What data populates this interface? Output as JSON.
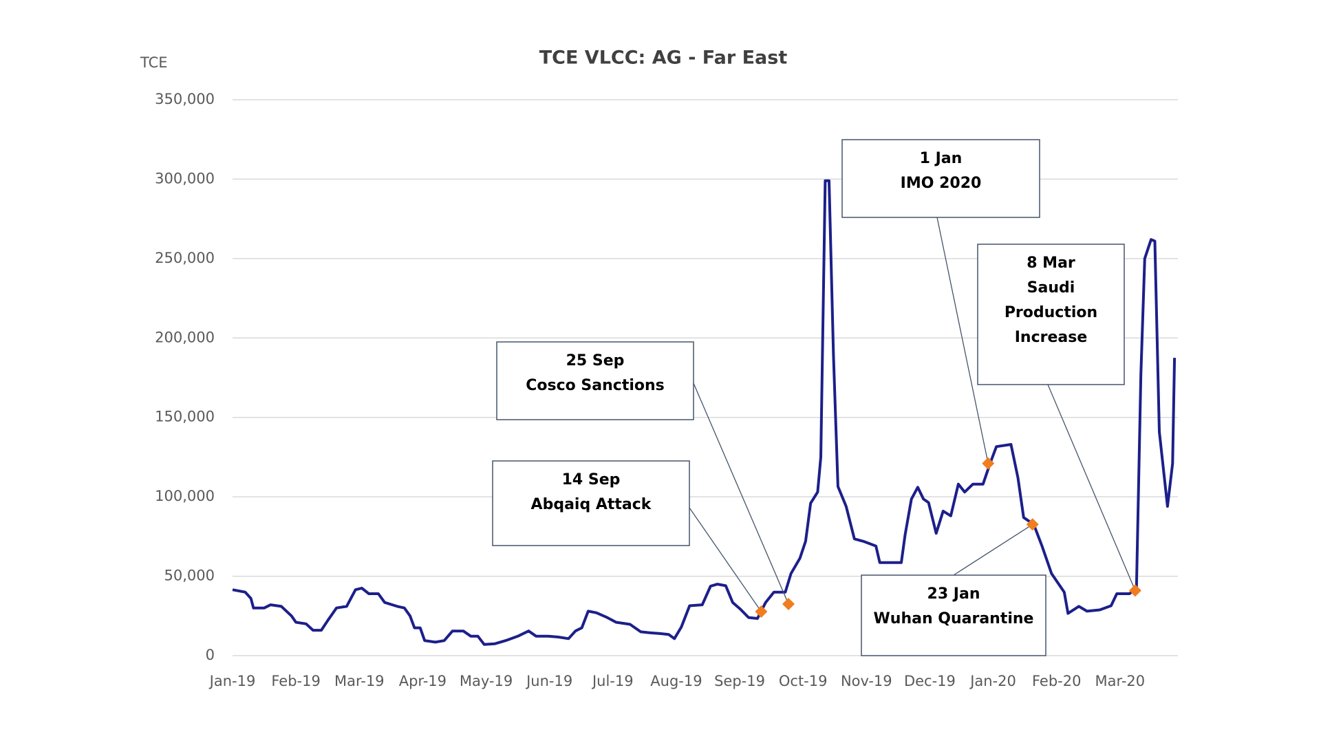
{
  "chart_data": {
    "type": "line",
    "title": "TCE VLCC: AG - Far East",
    "y_label": "TCE",
    "color": "#1c1f8a",
    "marker_color": "#f07d1e",
    "grid": true,
    "xlim": [
      0,
      14.87
    ],
    "xticks": [
      {
        "value": 0,
        "label": "Jan-19"
      },
      {
        "value": 1,
        "label": "Feb-19"
      },
      {
        "value": 2,
        "label": "Mar-19"
      },
      {
        "value": 3,
        "label": "Apr-19"
      },
      {
        "value": 4,
        "label": "May-19"
      },
      {
        "value": 5,
        "label": "Jun-19"
      },
      {
        "value": 6,
        "label": "Jul-19"
      },
      {
        "value": 7,
        "label": "Aug-19"
      },
      {
        "value": 8,
        "label": "Sep-19"
      },
      {
        "value": 9,
        "label": "Oct-19"
      },
      {
        "value": 10,
        "label": "Nov-19"
      },
      {
        "value": 11,
        "label": "Dec-19"
      },
      {
        "value": 12,
        "label": "Jan-20"
      },
      {
        "value": 13,
        "label": "Feb-20"
      },
      {
        "value": 14,
        "label": "Mar-20"
      }
    ],
    "ylim": [
      0,
      350000
    ],
    "yticks": [
      0,
      {
        "value": 50000,
        "label": "50,000"
      },
      {
        "value": 100000,
        "label": "100,000"
      },
      {
        "value": 150000,
        "label": "150,000"
      },
      {
        "value": 200000,
        "label": "200,000"
      },
      {
        "value": 250000,
        "label": "250,000"
      },
      {
        "value": 300000,
        "label": "300,000"
      },
      {
        "value": 350000,
        "label": "350,000"
      }
    ],
    "x": [
      0,
      0.2,
      0.29,
      0.33,
      0.5,
      0.6,
      0.77,
      0.93,
      1.0,
      1.16,
      1.27,
      1.4,
      1.5,
      1.64,
      1.8,
      1.94,
      2.04,
      2.15,
      2.3,
      2.4,
      2.6,
      2.71,
      2.8,
      2.87,
      2.96,
      3.03,
      3.2,
      3.34,
      3.47,
      3.64,
      3.76,
      3.87,
      3.97,
      4.14,
      4.31,
      4.5,
      4.67,
      4.79,
      4.98,
      5.14,
      5.3,
      5.41,
      5.51,
      5.61,
      5.74,
      5.91,
      6.05,
      6.27,
      6.44,
      6.58,
      6.74,
      6.88,
      6.97,
      7.08,
      7.21,
      7.41,
      7.54,
      7.65,
      7.78,
      7.89,
      8.01,
      8.14,
      8.28,
      8.41,
      8.54,
      8.72,
      8.81,
      8.95,
      9.04,
      9.12,
      9.23,
      9.28,
      9.35,
      9.41,
      9.48,
      9.55,
      9.68,
      9.81,
      9.95,
      10.15,
      10.21,
      10.55,
      10.61,
      10.71,
      10.81,
      10.9,
      10.98,
      11.1,
      11.21,
      11.33,
      11.45,
      11.55,
      11.68,
      11.84,
      11.95,
      12.05,
      12.28,
      12.39,
      12.48,
      12.64,
      12.77,
      12.92,
      13.12,
      13.18,
      13.35,
      13.48,
      13.68,
      13.86,
      13.95,
      14.15,
      14.26,
      14.33,
      14.39,
      14.49,
      14.55,
      14.62,
      14.75,
      14.83,
      14.86
    ],
    "values": [
      41500,
      40000,
      36000,
      30000,
      30000,
      32000,
      31000,
      25000,
      21000,
      20000,
      16000,
      16000,
      22000,
      30000,
      31000,
      41500,
      42500,
      39000,
      39000,
      33500,
      31000,
      30000,
      25000,
      17500,
      17500,
      9500,
      8500,
      9500,
      15500,
      15500,
      12200,
      12200,
      7000,
      7500,
      9500,
      12200,
      15500,
      12200,
      12200,
      11700,
      10700,
      15500,
      17500,
      28000,
      27000,
      24000,
      21000,
      19700,
      15000,
      14400,
      13900,
      13300,
      10700,
      18000,
      31400,
      32000,
      43700,
      45000,
      44000,
      33500,
      29300,
      24000,
      23400,
      33500,
      40000,
      40000,
      51700,
      61300,
      72000,
      96000,
      103000,
      125000,
      299000,
      299000,
      189000,
      106500,
      94000,
      73500,
      72000,
      69000,
      58600,
      58600,
      76000,
      98600,
      106000,
      98600,
      96400,
      77000,
      91000,
      88000,
      108000,
      103000,
      108000,
      108000,
      121000,
      131600,
      133000,
      112000,
      87000,
      82600,
      69000,
      51700,
      40000,
      26600,
      31000,
      28000,
      28800,
      31400,
      39000,
      39000,
      42600,
      177000,
      250000,
      262000,
      261000,
      141000,
      94000,
      121000,
      187500
    ],
    "annotations": [
      {
        "text": [
          "25 Sep",
          "Cosco Sanctions"
        ],
        "x": 8.77,
        "y": 32500
      },
      {
        "text": [
          "14 Sep",
          "Abqaiq Attack"
        ],
        "x": 8.34,
        "y": 27700
      },
      {
        "text": [
          "1 Jan",
          "IMO 2020"
        ],
        "x": 11.92,
        "y": 121000
      },
      {
        "text": [
          "8 Mar",
          "Saudi",
          "Production",
          "Increase"
        ],
        "x": 14.24,
        "y": 41000
      },
      {
        "text": [
          "23 Jan",
          "Wuhan Quarantine"
        ],
        "x": 12.62,
        "y": 82600
      }
    ]
  }
}
